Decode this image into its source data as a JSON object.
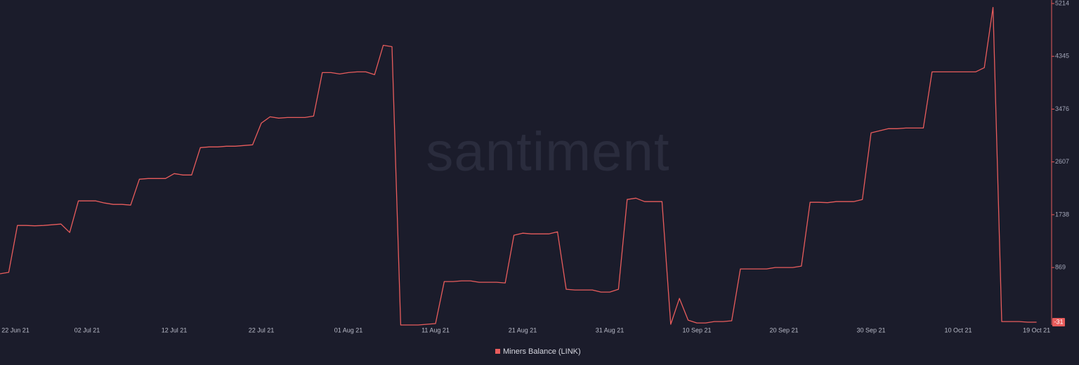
{
  "chart_data": {
    "type": "line",
    "watermark": "santiment",
    "x": [
      "22 Jun 21",
      "23 Jun 21",
      "24 Jun 21",
      "25 Jun 21",
      "26 Jun 21",
      "27 Jun 21",
      "28 Jun 21",
      "29 Jun 21",
      "30 Jun 21",
      "01 Jul 21",
      "02 Jul 21",
      "03 Jul 21",
      "04 Jul 21",
      "05 Jul 21",
      "06 Jul 21",
      "07 Jul 21",
      "08 Jul 21",
      "09 Jul 21",
      "10 Jul 21",
      "11 Jul 21",
      "12 Jul 21",
      "13 Jul 21",
      "14 Jul 21",
      "15 Jul 21",
      "16 Jul 21",
      "17 Jul 21",
      "18 Jul 21",
      "19 Jul 21",
      "20 Jul 21",
      "21 Jul 21",
      "22 Jul 21",
      "23 Jul 21",
      "24 Jul 21",
      "25 Jul 21",
      "26 Jul 21",
      "27 Jul 21",
      "28 Jul 21",
      "29 Jul 21",
      "30 Jul 21",
      "31 Jul 21",
      "01 Aug 21",
      "02 Aug 21",
      "03 Aug 21",
      "04 Aug 21",
      "05 Aug 21",
      "06 Aug 21",
      "07 Aug 21",
      "08 Aug 21",
      "09 Aug 21",
      "10 Aug 21",
      "11 Aug 21",
      "12 Aug 21",
      "13 Aug 21",
      "14 Aug 21",
      "15 Aug 21",
      "16 Aug 21",
      "17 Aug 21",
      "18 Aug 21",
      "19 Aug 21",
      "20 Aug 21",
      "21 Aug 21",
      "22 Aug 21",
      "23 Aug 21",
      "24 Aug 21",
      "25 Aug 21",
      "26 Aug 21",
      "27 Aug 21",
      "28 Aug 21",
      "29 Aug 21",
      "30 Aug 21",
      "31 Aug 21",
      "01 Sep 21",
      "02 Sep 21",
      "03 Sep 21",
      "04 Sep 21",
      "05 Sep 21",
      "06 Sep 21",
      "07 Sep 21",
      "08 Sep 21",
      "09 Sep 21",
      "10 Sep 21",
      "11 Sep 21",
      "12 Sep 21",
      "13 Sep 21",
      "14 Sep 21",
      "15 Sep 21",
      "16 Sep 21",
      "17 Sep 21",
      "18 Sep 21",
      "19 Sep 21",
      "20 Sep 21",
      "21 Sep 21",
      "22 Sep 21",
      "23 Sep 21",
      "24 Sep 21",
      "25 Sep 21",
      "26 Sep 21",
      "27 Sep 21",
      "28 Sep 21",
      "29 Sep 21",
      "30 Sep 21",
      "01 Oct 21",
      "02 Oct 21",
      "03 Oct 21",
      "04 Oct 21",
      "05 Oct 21",
      "06 Oct 21",
      "07 Oct 21",
      "08 Oct 21",
      "09 Oct 21",
      "10 Oct 21",
      "11 Oct 21",
      "12 Oct 21",
      "13 Oct 21",
      "14 Oct 21",
      "15 Oct 21",
      "16 Oct 21",
      "17 Oct 21",
      "18 Oct 21",
      "19 Oct 21"
    ],
    "series": [
      {
        "name": "Miners Balance (LINK)",
        "color": "#e85c5c",
        "values": [
          766,
          789,
          1561,
          1561,
          1555,
          1561,
          1573,
          1584,
          1446,
          1965,
          1965,
          1965,
          1931,
          1908,
          1908,
          1896,
          2323,
          2334,
          2334,
          2334,
          2415,
          2392,
          2392,
          2842,
          2854,
          2854,
          2865,
          2865,
          2877,
          2888,
          3246,
          3350,
          3327,
          3338,
          3338,
          3338,
          3361,
          4077,
          4077,
          4054,
          4077,
          4089,
          4089,
          4043,
          4527,
          4504,
          -77,
          -77,
          -77,
          -66,
          -54,
          638,
          638,
          650,
          650,
          627,
          627,
          627,
          615,
          1400,
          1434,
          1423,
          1423,
          1423,
          1457,
          511,
          500,
          500,
          500,
          465,
          465,
          511,
          1988,
          2011,
          1954,
          1954,
          1954,
          -66,
          361,
          3,
          -43,
          -43,
          -20,
          -20,
          -8,
          846,
          846,
          846,
          846,
          869,
          869,
          869,
          892,
          1942,
          1942,
          1937,
          1954,
          1954,
          1954,
          1988,
          3085,
          3119,
          3154,
          3154,
          3165,
          3165,
          3165,
          4089,
          4089,
          4089,
          4089,
          4089,
          4089,
          4158,
          5151,
          -20,
          -20,
          -20,
          -31,
          -31
        ]
      }
    ],
    "xticks": [
      "22 Jun 21",
      "02 Jul 21",
      "12 Jul 21",
      "22 Jul 21",
      "01 Aug 21",
      "11 Aug 21",
      "21 Aug 21",
      "31 Aug 21",
      "10 Sep 21",
      "20 Sep 21",
      "30 Sep 21",
      "10 Oct 21",
      "19 Oct 21"
    ],
    "ylim": [
      -77,
      5214
    ],
    "yticks": [
      5214,
      4345,
      3476,
      2607,
      1738,
      869
    ],
    "y_axis_side": "right",
    "legend": "bottom"
  }
}
